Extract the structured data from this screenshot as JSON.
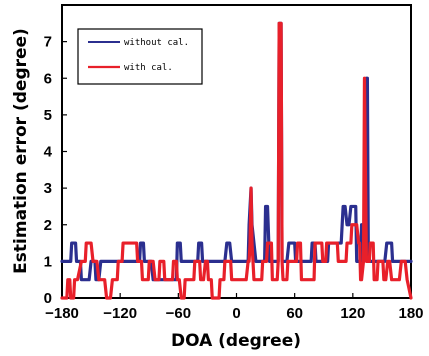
{
  "chart_data": {
    "type": "line",
    "title": "",
    "xlabel": "DOA (degree)",
    "ylabel": "Estimation   error   (degree)",
    "xlim": [
      -180,
      180
    ],
    "ylim": [
      0,
      8
    ],
    "xticks": [
      -180,
      -120,
      -60,
      0,
      60,
      120,
      180
    ],
    "yticks": [
      0,
      1,
      2,
      3,
      4,
      5,
      6,
      7
    ],
    "xtick_labels": [
      "−180",
      "−120",
      "−60",
      "0",
      "60",
      "120",
      "180"
    ],
    "ytick_labels": [
      "0",
      "1",
      "2",
      "3",
      "4",
      "5",
      "6",
      "7"
    ],
    "grid": false,
    "legend_position": "top-left",
    "series": [
      {
        "name": "without cal.",
        "color": "#2b2f8f",
        "x": [
          -180,
          -171,
          -170,
          -166,
          -165,
          -161,
          -160,
          -152,
          -150,
          -146,
          -145,
          -142,
          -140,
          -136,
          -135,
          -100,
          -99,
          -96,
          -95,
          -88,
          -86,
          -62,
          -61,
          -58,
          -57,
          -40,
          -39,
          -36,
          -35,
          -12,
          -10,
          -7,
          -5,
          12,
          13,
          15,
          16,
          18,
          20,
          29,
          30,
          32,
          34,
          43,
          44,
          46,
          47,
          52,
          54,
          60,
          61,
          77,
          78,
          81,
          82,
          94,
          95,
          108,
          110,
          112,
          114,
          116,
          118,
          123,
          124,
          128,
          129,
          133,
          134,
          135,
          136,
          153,
          155,
          160,
          161,
          180
        ],
        "y": [
          1,
          1,
          1.5,
          1.5,
          1,
          1,
          0.5,
          0.5,
          1,
          1,
          0.5,
          0.5,
          1,
          1,
          1,
          1,
          1.5,
          1.5,
          1,
          1,
          0.5,
          0.5,
          1.5,
          1.5,
          1,
          1,
          1.5,
          1.5,
          1,
          1,
          1.5,
          1.5,
          1,
          1,
          2,
          3,
          2,
          1.5,
          1,
          1,
          2.5,
          2.5,
          1,
          1,
          7.5,
          7.5,
          1,
          1,
          1.5,
          1.5,
          1,
          1,
          1.5,
          1.5,
          1,
          1,
          1.5,
          1.5,
          2.5,
          2.5,
          2,
          2,
          2.5,
          2.5,
          1,
          1,
          2,
          2,
          6,
          6,
          1,
          1,
          1.5,
          1.5,
          1,
          1
        ]
      },
      {
        "name": "with cal.",
        "color": "#e8202a",
        "x": [
          -180,
          -175,
          -174,
          -172,
          -171,
          -168,
          -167,
          -164,
          -160,
          -156,
          -155,
          -150,
          -148,
          -144,
          -142,
          -136,
          -134,
          -130,
          -128,
          -123,
          -122,
          -118,
          -117,
          -103,
          -102,
          -98,
          -97,
          -91,
          -90,
          -86,
          -84,
          -80,
          -79,
          -75,
          -74,
          -66,
          -65,
          -62,
          -61,
          -59,
          -57,
          -54,
          -53,
          -44,
          -43,
          -38,
          -37,
          -34,
          -32,
          -30,
          -29,
          -26,
          -25,
          -18,
          -17,
          -13,
          -12,
          -6,
          -5,
          10,
          12,
          13,
          14,
          15,
          16,
          17,
          18,
          26,
          27,
          31,
          32,
          36,
          37,
          42,
          43,
          44,
          46,
          47,
          48,
          52,
          53,
          62,
          63,
          66,
          67,
          80,
          81,
          88,
          89,
          92,
          93,
          104,
          105,
          113,
          114,
          118,
          119,
          124,
          126,
          127,
          128,
          129,
          131,
          132,
          134,
          137,
          138,
          141,
          142,
          145,
          146,
          151,
          152,
          154,
          156,
          158,
          160,
          168,
          170,
          174,
          176,
          180
        ],
        "y": [
          0,
          0,
          0.5,
          0.5,
          0,
          0,
          0.5,
          0.5,
          1,
          1,
          1.5,
          1.5,
          1,
          1,
          0.5,
          0.5,
          0,
          0,
          0.5,
          0.5,
          1,
          1,
          1.5,
          1.5,
          1,
          1,
          0.5,
          0.5,
          1,
          1,
          0.5,
          0.5,
          1,
          1,
          0.5,
          0.5,
          1,
          1,
          0.5,
          0.5,
          0,
          0,
          0.5,
          0.5,
          1,
          1,
          0.5,
          0.5,
          1,
          1,
          0.5,
          0.5,
          0,
          0,
          0.5,
          0.5,
          1,
          1,
          0.5,
          0.5,
          1,
          1,
          1.5,
          3,
          1.5,
          1,
          0.5,
          0.5,
          1,
          1,
          1.5,
          1.5,
          0.5,
          0.5,
          1,
          7.5,
          7.5,
          1,
          0.5,
          0.5,
          1,
          1,
          1.5,
          1.5,
          0.5,
          0.5,
          1.5,
          1.5,
          1,
          1,
          1.5,
          1.5,
          1,
          1,
          1.5,
          1.5,
          2,
          2,
          1.5,
          1.5,
          0.5,
          0.5,
          1,
          6,
          1,
          1,
          1.5,
          1.5,
          0.5,
          0.5,
          1,
          1,
          0.5,
          0.5,
          1,
          1,
          0.5,
          0.5,
          1,
          1,
          0.5,
          0
        ]
      }
    ]
  }
}
